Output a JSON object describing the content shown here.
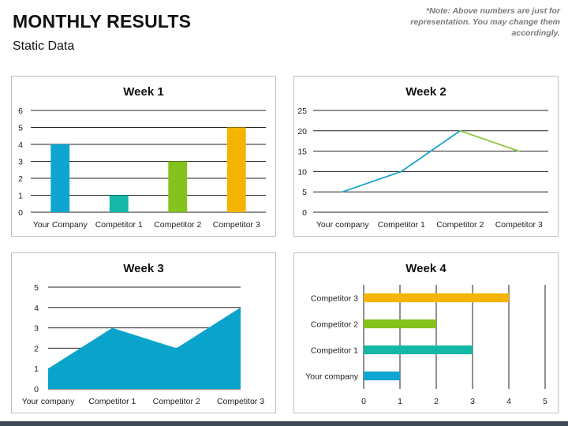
{
  "header": {
    "title": "MONTHLY RESULTS",
    "subtitle": "Static Data",
    "note": "*Note: Above numbers are just for representation. You may change them accordingly."
  },
  "chart_data": [
    {
      "id": "week1",
      "type": "bar",
      "title": "Week 1",
      "categories": [
        "Your Company",
        "Competitor 1",
        "Competitor 2",
        "Competitor 3"
      ],
      "values": [
        4,
        1,
        3,
        5
      ],
      "colors": [
        "#0ea5d0",
        "#14b8a6",
        "#84c21c",
        "#f5b400"
      ],
      "yticks": [
        0,
        1,
        2,
        3,
        4,
        5,
        6
      ],
      "ylim": [
        0,
        6
      ],
      "grid": true
    },
    {
      "id": "week2",
      "type": "line",
      "title": "Week 2",
      "categories": [
        "Your company",
        "Competitor 1",
        "Competitor 2",
        "Competitor 3"
      ],
      "values": [
        5,
        10,
        20,
        15
      ],
      "segment_colors": [
        "#1aa3c8",
        "#1aa3c8",
        "#8cc63f"
      ],
      "yticks": [
        0,
        5,
        10,
        15,
        20,
        25
      ],
      "ylim": [
        0,
        25
      ],
      "grid": true
    },
    {
      "id": "week3",
      "type": "area",
      "title": "Week 3",
      "categories": [
        "Your company",
        "Competitor 1",
        "Competitor 2",
        "Competitor 3"
      ],
      "values": [
        1,
        3,
        2,
        4
      ],
      "color": "#0aa3cc",
      "yticks": [
        0,
        1,
        2,
        3,
        4,
        5
      ],
      "ylim": [
        0,
        5
      ],
      "grid": true
    },
    {
      "id": "week4",
      "type": "bar",
      "orientation": "horizontal",
      "title": "Week 4",
      "categories": [
        "Your company",
        "Competitor 1",
        "Competitor 2",
        "Competitor 3"
      ],
      "values": [
        1,
        3,
        2,
        4
      ],
      "colors": [
        "#0ea5d0",
        "#14b8a6",
        "#84c21c",
        "#f5b400"
      ],
      "xticks": [
        0,
        1,
        2,
        3,
        4,
        5
      ],
      "xlim": [
        0,
        5
      ],
      "grid": true
    }
  ]
}
